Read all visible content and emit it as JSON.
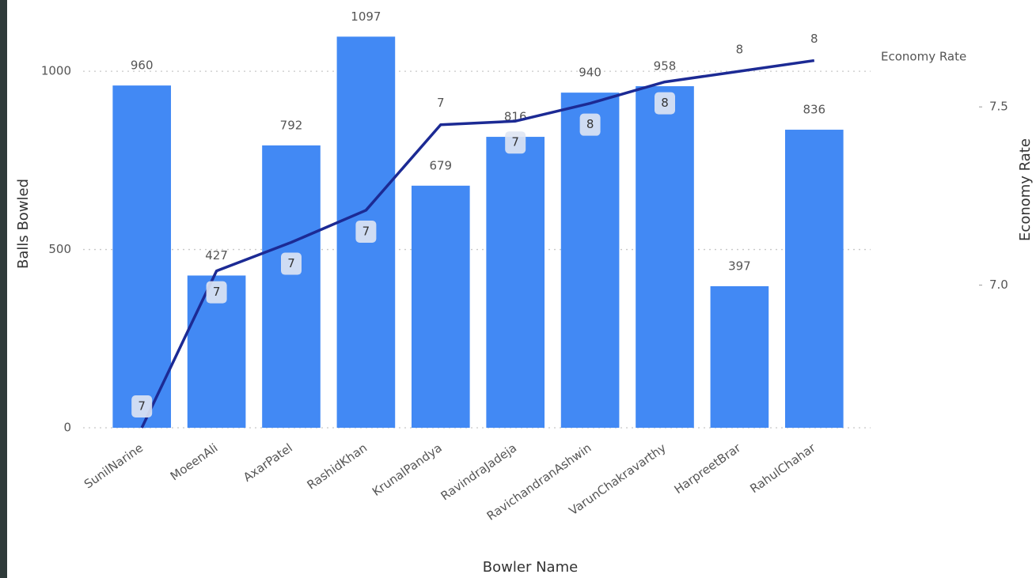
{
  "chart_data": {
    "type": "combo",
    "x_label": "Bowler Name",
    "y2_label": "Economy Rate",
    "categories": [
      "SunilNarine",
      "MoeenAli",
      "AxarPatel",
      "RashidKhan",
      "KrunalPandya",
      "RavindraJadeja",
      "RavichandranAshwin",
      "VarunChakravarthy",
      "HarpreetBrar",
      "RahulChahar"
    ],
    "series": [
      {
        "name": "Balls Bowled",
        "type": "bar",
        "color": "#4289f4",
        "values": [
          960,
          427,
          792,
          1097,
          679,
          816,
          940,
          958,
          397,
          836
        ]
      },
      {
        "name": "Economy Rate",
        "type": "line",
        "axis": "y2",
        "color": "#1c2a94",
        "values": [
          6.6,
          7.04,
          7.12,
          7.21,
          7.45,
          7.46,
          7.51,
          7.57,
          7.6,
          7.63
        ],
        "value_labels": [
          "7",
          "7",
          "7",
          "7",
          "7",
          "7",
          "8",
          "8",
          "8",
          "8"
        ]
      }
    ],
    "ylim": [
      0,
      1100
    ],
    "yticks": [
      0,
      500,
      1000
    ],
    "y2lim": [
      6.6,
      7.7
    ],
    "y2ticks": [
      {
        "value": 7,
        "label": "7.0"
      },
      7.5
    ],
    "grid": true,
    "legend": "top-right"
  }
}
